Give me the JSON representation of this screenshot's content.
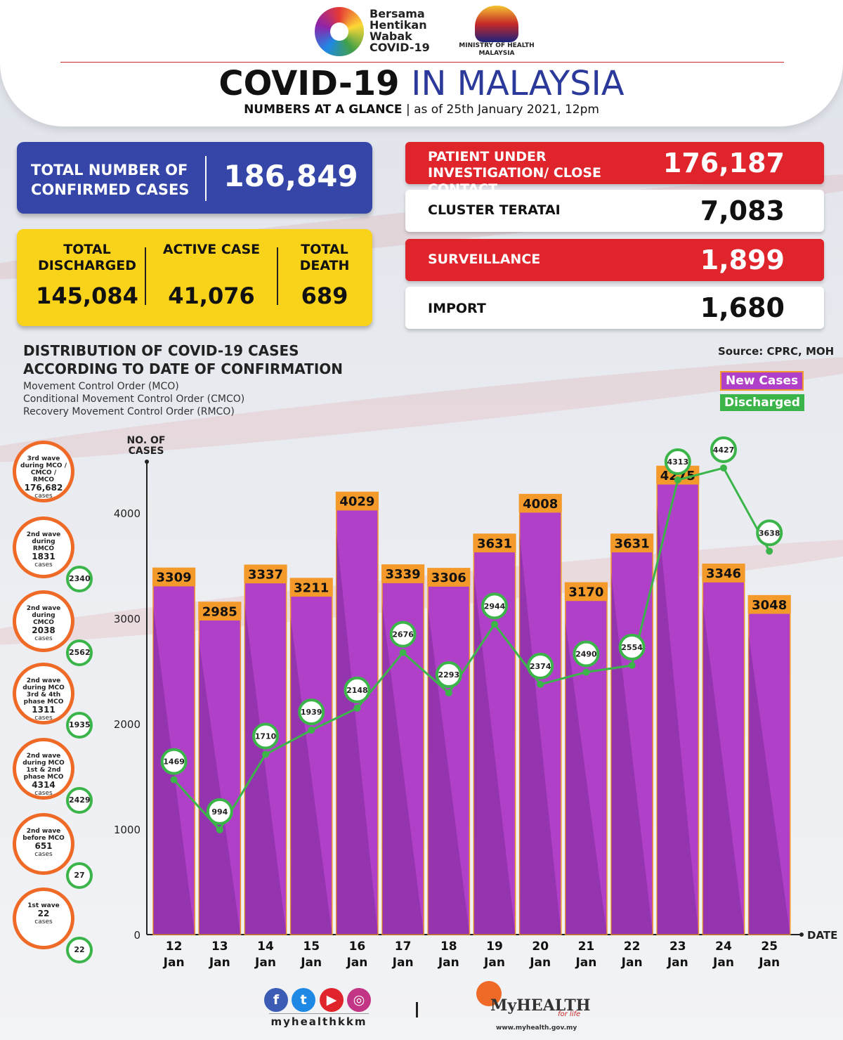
{
  "header": {
    "logo_lines": [
      "Bersama",
      "Hentikan",
      "Wabak",
      "COVID-19"
    ],
    "ministry": [
      "MINISTRY OF HEALTH",
      "MALAYSIA"
    ],
    "title_part1": "COVID-19",
    "title_part2": "IN MALAYSIA",
    "subtitle_bold": "NUMBERS AT A GLANCE",
    "subtitle_sep": "|",
    "subtitle_rest": "as of 25th January 2021, 12pm"
  },
  "summary": {
    "confirmed_label": "TOTAL NUMBER OF CONFIRMED CASES",
    "confirmed_value": "186,849",
    "discharged_label": "TOTAL DISCHARGED",
    "discharged_value": "145,084",
    "active_label": "ACTIVE CASE",
    "active_value": "41,076",
    "death_label": "TOTAL DEATH",
    "death_value": "689"
  },
  "right_panel": [
    {
      "label": "PATIENT UNDER INVESTIGATION/ CLOSE CONTACT",
      "value": "176,187",
      "style": "red"
    },
    {
      "label": "CLUSTER TERATAI",
      "value": "7,083",
      "style": "white"
    },
    {
      "label": "SURVEILLANCE",
      "value": "1,899",
      "style": "red"
    },
    {
      "label": "IMPORT",
      "value": "1,680",
      "style": "white"
    }
  ],
  "distribution": {
    "title_line1": "DISTRIBUTION OF COVID-19 CASES",
    "title_line2": "ACCORDING TO DATE OF CONFIRMATION",
    "notes": [
      "Movement Control Order (MCO)",
      "Conditional Movement Control Order (CMCO)",
      "Recovery Movement Control Order (RMCO)"
    ],
    "source": "Source: CPRC, MOH"
  },
  "waves": [
    {
      "line1": "3rd wave during MCO / CMCO / RMCO",
      "count": "176,682",
      "unit": "cases",
      "badge": ""
    },
    {
      "line1": "2nd wave during RMCO",
      "count": "1831",
      "unit": "cases",
      "badge": "2340"
    },
    {
      "line1": "2nd wave during CMCO",
      "count": "2038",
      "unit": "cases",
      "badge": "2562"
    },
    {
      "line1": "2nd wave during MCO 3rd & 4th phase MCO",
      "count": "1311",
      "unit": "cases",
      "badge": "1935"
    },
    {
      "line1": "2nd wave during MCO 1st & 2nd phase MCO",
      "count": "4314",
      "unit": "cases",
      "badge": "2429"
    },
    {
      "line1": "2nd wave before MCO",
      "count": "651",
      "unit": "cases",
      "badge": "27"
    },
    {
      "line1": "1st wave",
      "count": "22",
      "unit": "cases",
      "badge": "22"
    }
  ],
  "footer": {
    "social_icons": [
      "facebook-icon",
      "twitter-icon",
      "youtube-icon",
      "instagram-icon"
    ],
    "handle": "myhealthkkm",
    "divider": "|",
    "brand": "MyHEALTH",
    "brand_sub": "for life",
    "url": "www.myhealth.gov.my"
  },
  "colors": {
    "bar": "#b040c8",
    "bar_label_bg": "#f39a2b",
    "line": "#3bb54a",
    "accent_red": "#e0242c",
    "accent_blue": "#3546a8",
    "accent_yellow": "#f9d21a"
  },
  "chart_data": {
    "type": "bar",
    "title": "DISTRIBUTION OF COVID-19 CASES ACCORDING TO DATE OF CONFIRMATION",
    "ylabel": "NO. OF CASES",
    "xlabel": "DATE",
    "ylim": [
      0,
      4400
    ],
    "yticks": [
      0,
      1000,
      2000,
      3000,
      4000
    ],
    "categories": [
      [
        "12",
        "Jan"
      ],
      [
        "13",
        "Jan"
      ],
      [
        "14",
        "Jan"
      ],
      [
        "15",
        "Jan"
      ],
      [
        "16",
        "Jan"
      ],
      [
        "17",
        "Jan"
      ],
      [
        "18",
        "Jan"
      ],
      [
        "19",
        "Jan"
      ],
      [
        "20",
        "Jan"
      ],
      [
        "21",
        "Jan"
      ],
      [
        "22",
        "Jan"
      ],
      [
        "23",
        "Jan"
      ],
      [
        "24",
        "Jan"
      ],
      [
        "25",
        "Jan"
      ]
    ],
    "series": [
      {
        "name": "New Cases",
        "kind": "bar",
        "values": [
          3309,
          2985,
          3337,
          3211,
          4029,
          3339,
          3306,
          3631,
          4008,
          3170,
          3631,
          4275,
          3346,
          3048
        ]
      },
      {
        "name": "Discharged",
        "kind": "line",
        "values": [
          1469,
          994,
          1710,
          1939,
          2148,
          2676,
          2293,
          2944,
          2374,
          2490,
          2554,
          4313,
          4427,
          3638
        ]
      }
    ],
    "legend": "top-right"
  }
}
